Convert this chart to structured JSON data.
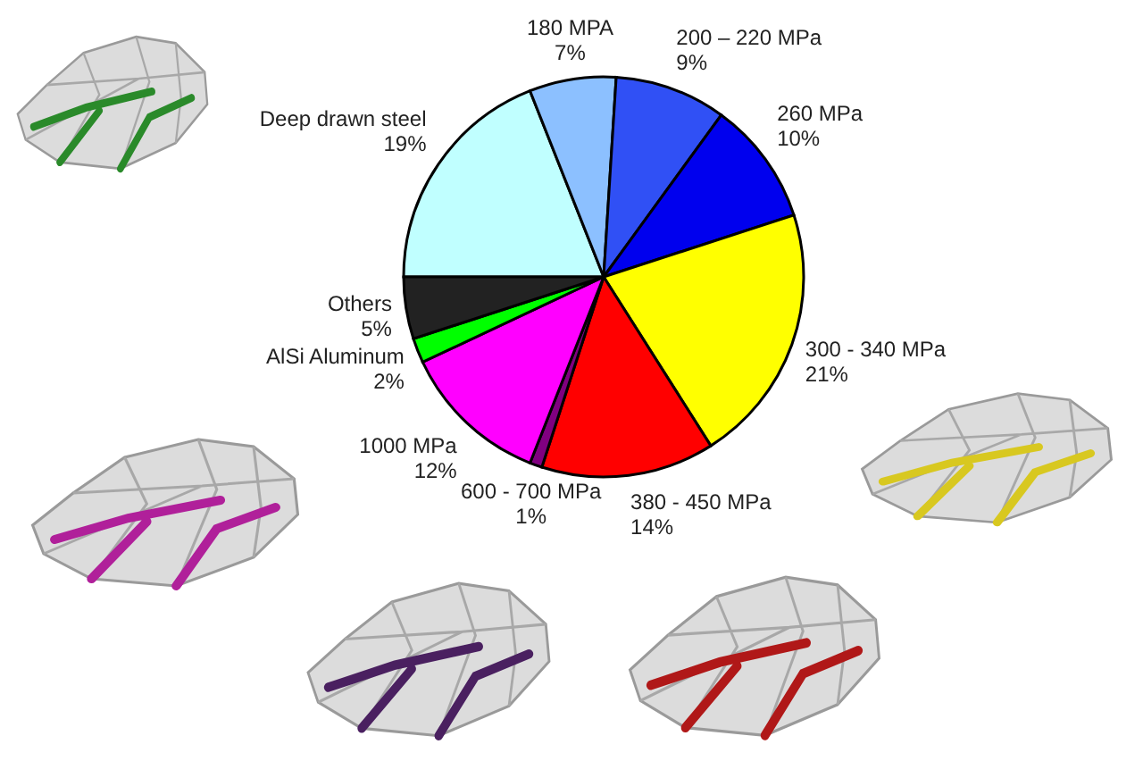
{
  "chart_data": {
    "type": "pie",
    "categories": [
      "Deep drawn steel",
      "180 MPA",
      "200 – 220 MPa",
      "260 MPa",
      "300 - 340 MPa",
      "380 - 450 MPa",
      "600 - 700 MPa",
      "1000 MPa",
      "AlSi Aluminum",
      "Others"
    ],
    "values": [
      19,
      7,
      9,
      10,
      21,
      14,
      1,
      12,
      2,
      5
    ],
    "value_labels": [
      "19%",
      "7%",
      "9%",
      "10%",
      "21%",
      "14%",
      "1%",
      "12%",
      "2%",
      "5%"
    ],
    "colors": [
      "#c0ffff",
      "#8cc0ff",
      "#3050f5",
      "#0000ee",
      "#ffff00",
      "#ff0000",
      "#800080",
      "#ff00ff",
      "#00ff00",
      "#222222"
    ]
  }
}
